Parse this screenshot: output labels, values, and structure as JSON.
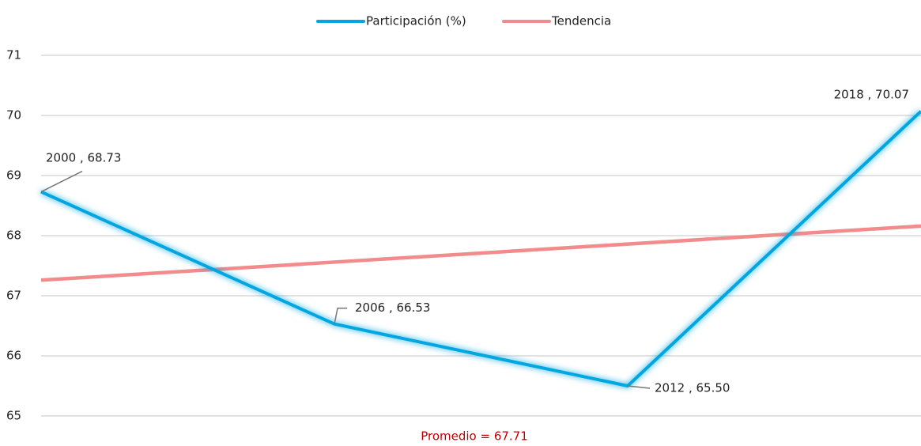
{
  "chart_data": {
    "type": "line",
    "x": [
      2000,
      2006,
      2012,
      2018
    ],
    "series": [
      {
        "name": "Participación (%)",
        "color": "#00a6e0",
        "values": [
          68.73,
          66.53,
          65.5,
          70.07
        ],
        "value_labels": [
          "2000 , 68.73",
          "2006 , 66.53",
          "2012 , 65.50",
          "2018 , 70.07"
        ]
      },
      {
        "name": "Tendencia",
        "color": "#f28b8b",
        "values": [
          67.26,
          67.56,
          67.86,
          68.16
        ]
      }
    ],
    "xlim": [
      2000,
      2018
    ],
    "ylim": [
      65,
      71
    ],
    "yticks": [
      65,
      66,
      67,
      68,
      69,
      70,
      71
    ],
    "grid": true,
    "legend": "top",
    "annotation": "Promedio = 67.71"
  }
}
